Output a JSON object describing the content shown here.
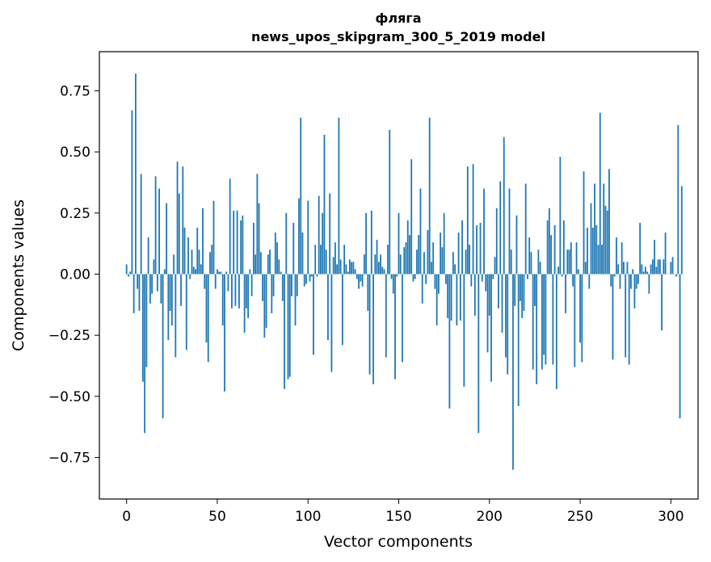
{
  "chart_data": {
    "type": "bar",
    "title": "фляга",
    "subtitle": "news_upos_skipgram_300_5_2019 model",
    "xlabel": "Vector components",
    "ylabel": "Components values",
    "xlim": [
      -15,
      315
    ],
    "ylim": [
      -0.92,
      0.91
    ],
    "xticks": [
      0,
      50,
      100,
      150,
      200,
      250,
      300
    ],
    "xtick_labels": [
      "0",
      "50",
      "100",
      "150",
      "200",
      "250",
      "300"
    ],
    "yticks": [
      -0.75,
      -0.5,
      -0.25,
      0.0,
      0.25,
      0.5,
      0.75
    ],
    "ytick_labels": [
      "−0.75",
      "−0.50",
      "−0.25",
      "0.00",
      "0.25",
      "0.50",
      "0.75"
    ],
    "grid": false,
    "bar_color": "#1f77b4",
    "values": [
      0.04,
      -0.01,
      0.01,
      0.67,
      -0.16,
      0.82,
      -0.06,
      -0.15,
      0.41,
      -0.44,
      -0.65,
      -0.38,
      0.15,
      -0.12,
      -0.08,
      0.06,
      0.4,
      -0.07,
      0.35,
      -0.12,
      -0.59,
      0.02,
      0.29,
      -0.27,
      -0.15,
      -0.21,
      0.08,
      -0.34,
      0.46,
      0.33,
      -0.13,
      0.44,
      0.19,
      -0.31,
      0.15,
      -0.02,
      0.1,
      0.03,
      0.02,
      0.19,
      0.1,
      0.04,
      0.27,
      -0.06,
      -0.28,
      -0.36,
      0.09,
      0.12,
      0.3,
      -0.06,
      0.02,
      0.01,
      0.01,
      -0.21,
      -0.48,
      0.01,
      -0.07,
      0.39,
      -0.14,
      0.26,
      -0.13,
      0.26,
      -0.14,
      0.22,
      0.24,
      -0.24,
      -0.14,
      -0.18,
      0.02,
      -0.09,
      0.21,
      0.08,
      0.41,
      0.29,
      0.09,
      -0.11,
      -0.26,
      -0.22,
      0.08,
      0.1,
      -0.16,
      -0.09,
      0.17,
      0.13,
      0.06,
      0.01,
      -0.11,
      -0.47,
      0.25,
      -0.43,
      -0.42,
      -0.09,
      0.21,
      -0.21,
      -0.09,
      0.31,
      0.64,
      0.17,
      -0.05,
      -0.04,
      0.3,
      -0.03,
      -0.01,
      -0.33,
      0.12,
      -0.01,
      0.32,
      0.12,
      0.25,
      0.57,
      0.1,
      -0.27,
      0.33,
      -0.4,
      0.07,
      0.13,
      0.04,
      0.64,
      0.06,
      -0.29,
      0.12,
      0.04,
      0.01,
      0.06,
      0.05,
      0.05,
      0.02,
      -0.02,
      -0.06,
      -0.03,
      -0.05,
      0.08,
      0.25,
      -0.15,
      -0.41,
      0.26,
      -0.45,
      0.08,
      0.14,
      0.05,
      0.08,
      0.03,
      0.02,
      -0.34,
      0.12,
      0.59,
      -0.02,
      -0.08,
      -0.43,
      -0.01,
      0.25,
      0.08,
      -0.36,
      0.11,
      0.13,
      0.22,
      0.16,
      0.47,
      -0.03,
      -0.02,
      0.1,
      0.16,
      0.35,
      -0.12,
      0.09,
      -0.04,
      0.18,
      0.64,
      0.05,
      0.13,
      -0.06,
      -0.21,
      -0.08,
      0.17,
      0.11,
      0.25,
      -0.04,
      -0.18,
      -0.55,
      -0.19,
      0.09,
      0.04,
      -0.21,
      0.17,
      -0.19,
      0.22,
      -0.46,
      0.1,
      0.44,
      0.12,
      -0.05,
      0.45,
      -0.17,
      0.2,
      -0.65,
      0.21,
      -0.03,
      0.35,
      -0.07,
      -0.32,
      -0.17,
      -0.44,
      -0.02,
      0.07,
      0.27,
      -0.14,
      0.38,
      -0.24,
      0.56,
      -0.34,
      -0.41,
      0.35,
      0.1,
      -0.8,
      -0.13,
      0.24,
      -0.54,
      -0.11,
      -0.18,
      -0.15,
      0.37,
      -0.02,
      0.15,
      0.09,
      -0.39,
      -0.13,
      -0.45,
      0.1,
      0.05,
      -0.39,
      -0.33,
      -0.37,
      0.22,
      0.27,
      0.16,
      -0.37,
      0.2,
      -0.47,
      0.03,
      0.48,
      -0.01,
      0.22,
      -0.16,
      0.1,
      0.1,
      0.13,
      -0.05,
      -0.38,
      0.13,
      0.02,
      -0.28,
      -0.36,
      0.42,
      0.05,
      0.19,
      -0.06,
      0.29,
      0.19,
      0.37,
      0.2,
      0.12,
      0.66,
      0.12,
      0.37,
      0.28,
      0.26,
      0.43,
      -0.05,
      -0.35,
      -0.01,
      0.15,
      0.04,
      -0.06,
      0.13,
      0.05,
      -0.34,
      0.05,
      -0.37,
      -0.06,
      0.02,
      -0.14,
      -0.06,
      -0.04,
      0.21,
      0.04,
      0.01,
      0.03,
      0.01,
      -0.08,
      0.04,
      0.06,
      0.14,
      0.03,
      0.06,
      0.06,
      -0.23,
      0.06,
      0.17,
      0.0,
      0.0,
      0.05,
      0.07,
      0.0,
      -0.01,
      0.61,
      -0.59,
      0.36,
      0.0
    ]
  }
}
